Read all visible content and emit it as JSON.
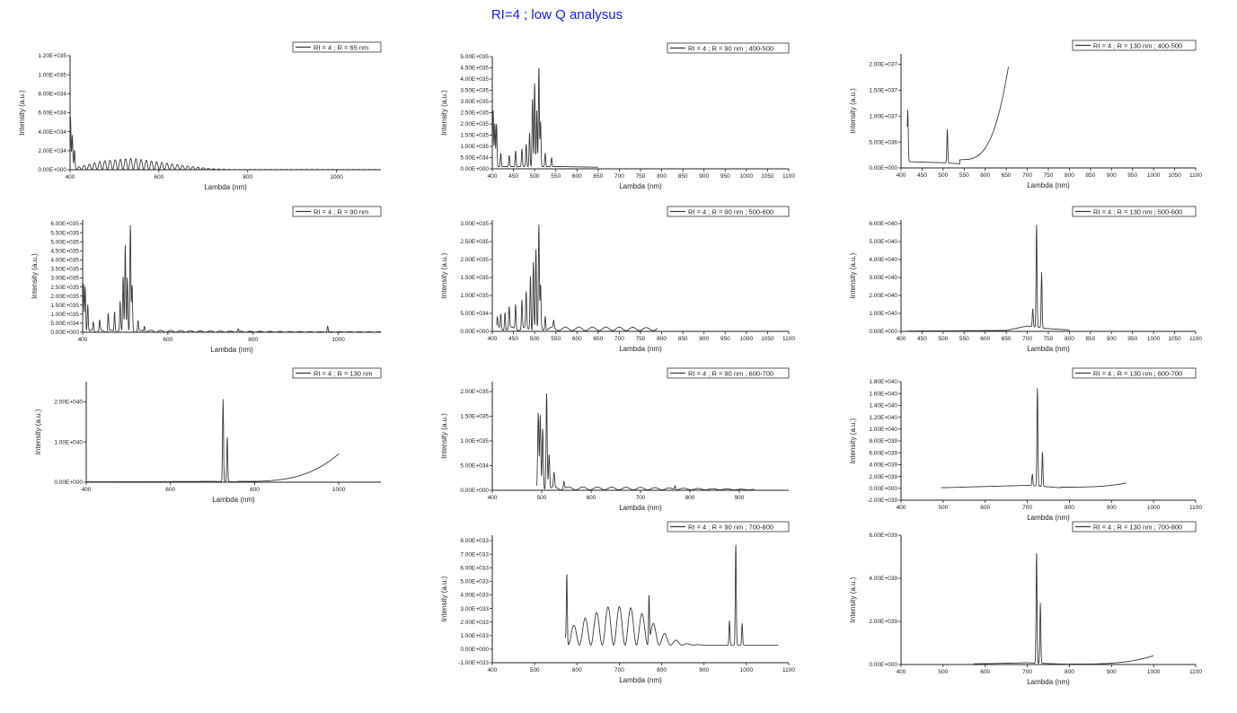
{
  "title": "RI=4 ; low Q analysus",
  "colors": {
    "line": "#3a3a3a",
    "title": "#1a1adc"
  },
  "chart_data": [
    {
      "id": "p11",
      "type": "line",
      "legend": "RI = 4 ; R = 65 nm",
      "xlabel": "Lambda (nm)",
      "ylabel": "Intensity (a.u.)",
      "xlim": [
        400,
        1100
      ],
      "xticks": [
        400,
        600,
        800,
        1000
      ],
      "ylim": [
        0,
        1.2e+35
      ],
      "yticks": [
        [
          0,
          "0.00E+000"
        ],
        [
          2e+34,
          "2.00E+034"
        ],
        [
          4e+34,
          "4.00E+034"
        ],
        [
          6e+34,
          "6.00E+034"
        ],
        [
          8e+34,
          "8.00E+034"
        ],
        [
          1e+35,
          "1.00E+035"
        ],
        [
          1.2e+35,
          "1.20E+035"
        ]
      ],
      "x_range": [
        400,
        1090
      ],
      "peaks": [
        [
          401,
          5.5e+34
        ],
        [
          405,
          3.5e+34
        ],
        [
          410,
          1.8e+34
        ]
      ],
      "envelope": [
        [
          420,
          3e+33
        ],
        [
          470,
          9e+33
        ],
        [
          540,
          1.2e+34
        ],
        [
          600,
          8e+33
        ],
        [
          660,
          4e+33
        ],
        [
          720,
          1e+33
        ],
        [
          760,
          2e+32
        ]
      ],
      "osc": 60,
      "floor": 1e+32
    },
    {
      "id": "p12",
      "type": "line",
      "legend": "RI = 4 ; R = 90 nm ; 400-500",
      "xlabel": "Lambda (nm)",
      "ylabel": "Intensity (a.u.)",
      "xlim": [
        400,
        1100
      ],
      "xticks": [
        400,
        450,
        500,
        550,
        600,
        650,
        700,
        750,
        800,
        850,
        900,
        950,
        1000,
        1050,
        1100
      ],
      "ylim": [
        0,
        5e+35
      ],
      "yticks": [
        [
          0,
          "0.00E+000"
        ],
        [
          5e+34,
          "5.00E+034"
        ],
        [
          1e+35,
          "1.00E+035"
        ],
        [
          1.5e+35,
          "1.50E+035"
        ],
        [
          2e+35,
          "2.00E+035"
        ],
        [
          2.5e+35,
          "2.50E+035"
        ],
        [
          3e+35,
          "3.00E+035"
        ],
        [
          3.5e+35,
          "3.50E+035"
        ],
        [
          4e+35,
          "4.00E+035"
        ],
        [
          4.5e+35,
          "4.50E+035"
        ],
        [
          5e+35,
          "5.00E+035"
        ]
      ],
      "x_range": [
        400,
        650
      ],
      "peaks": [
        [
          402,
          2.5e+35
        ],
        [
          406,
          1.9e+35
        ],
        [
          410,
          1.9e+35
        ],
        [
          420,
          6e+34
        ],
        [
          440,
          5e+34
        ],
        [
          455,
          7e+34
        ],
        [
          470,
          8e+34
        ],
        [
          480,
          1e+35
        ],
        [
          488,
          1.5e+35
        ],
        [
          495,
          3e+35
        ],
        [
          500,
          3.7e+35
        ],
        [
          505,
          2.5e+35
        ],
        [
          510,
          4.4e+35
        ],
        [
          514,
          2e+35
        ],
        [
          525,
          6e+34
        ],
        [
          540,
          4e+34
        ]
      ],
      "envelope": [
        [
          560,
          8e+33
        ],
        [
          650,
          5e+33
        ]
      ],
      "osc": 0,
      "floor": 2e+33
    },
    {
      "id": "p13",
      "type": "line",
      "legend": "RI = 4 ; R = 130 nm ; 400-500",
      "xlabel": "Lambda (nm)",
      "ylabel": "Intensity (a.u.)",
      "xlim": [
        400,
        1100
      ],
      "xticks": [
        400,
        450,
        500,
        550,
        600,
        650,
        700,
        750,
        800,
        850,
        900,
        950,
        1000,
        1050,
        1100
      ],
      "ylim": [
        0,
        2.2e+37
      ],
      "yticks": [
        [
          0,
          "0.00E+000"
        ],
        [
          5e+36,
          "5.00E+036"
        ],
        [
          1e+37,
          "1.00E+037"
        ],
        [
          1.5e+37,
          "1.50E+037"
        ],
        [
          2e+37,
          "2.00E+037"
        ]
      ],
      "x_range": [
        415,
        655
      ],
      "peaks": [
        [
          416,
          1e+37
        ],
        [
          510,
          6.5e+36
        ]
      ],
      "exp_rise": {
        "start": 540,
        "end": 655,
        "base": 8e+35,
        "top": 1.87e+37
      },
      "envelope": [
        [
          420,
          1.2e+36
        ],
        [
          500,
          1e+36
        ],
        [
          540,
          8e+35
        ]
      ],
      "osc": 0,
      "floor": 0
    },
    {
      "id": "p21",
      "type": "line",
      "legend": "RI = 4 ; R = 90 nm",
      "xlabel": "Lambda (nm)",
      "ylabel": "Intensity (a.u.)",
      "xlim": [
        400,
        1100
      ],
      "xticks": [
        400,
        600,
        800,
        1000
      ],
      "ylim": [
        0,
        6.2e+35
      ],
      "yticks": [
        [
          0,
          "0.00E+000"
        ],
        [
          5e+34,
          "5.00E+034"
        ],
        [
          1e+35,
          "1.00E+035"
        ],
        [
          1.5e+35,
          "1.50E+035"
        ],
        [
          2e+35,
          "2.00E+035"
        ],
        [
          2.5e+35,
          "2.50E+035"
        ],
        [
          3e+35,
          "3.00E+035"
        ],
        [
          3.5e+35,
          "3.50E+035"
        ],
        [
          4e+35,
          "4.00E+035"
        ],
        [
          4.5e+35,
          "4.50E+035"
        ],
        [
          5e+35,
          "5.00E+035"
        ],
        [
          5.5e+35,
          "5.50E+035"
        ],
        [
          6e+35,
          "6.00E+035"
        ]
      ],
      "x_range": [
        400,
        1100
      ],
      "peaks": [
        [
          402,
          2.6e+35
        ],
        [
          406,
          2.5e+35
        ],
        [
          412,
          1.5e+35
        ],
        [
          425,
          5e+34
        ],
        [
          440,
          6e+34
        ],
        [
          460,
          1e+35
        ],
        [
          475,
          1.1e+35
        ],
        [
          488,
          1.6e+35
        ],
        [
          495,
          3e+35
        ],
        [
          500,
          4.8e+35
        ],
        [
          505,
          3e+35
        ],
        [
          512,
          5.8e+35
        ],
        [
          516,
          2.5e+35
        ],
        [
          530,
          6e+34
        ],
        [
          545,
          3e+34
        ],
        [
          765,
          1.5e+34
        ],
        [
          975,
          3e+34
        ]
      ],
      "envelope": [
        [
          560,
          1e+34
        ],
        [
          700,
          6e+33
        ],
        [
          900,
          3e+33
        ],
        [
          1100,
          2e+33
        ]
      ],
      "osc": 30,
      "floor": 1e+33
    },
    {
      "id": "p22",
      "type": "line",
      "legend": "RI = 4 ; R = 90 nm ; 500-600",
      "xlabel": "Lambda (nm)",
      "ylabel": "Intensity (a.u.)",
      "xlim": [
        400,
        1100
      ],
      "xticks": [
        400,
        450,
        500,
        550,
        600,
        650,
        700,
        750,
        800,
        850,
        900,
        950,
        1000,
        1050,
        1100
      ],
      "ylim": [
        0,
        3.1e+35
      ],
      "yticks": [
        [
          0,
          "0.00E+000"
        ],
        [
          5e+34,
          "5.00E+034"
        ],
        [
          1e+35,
          "1.00E+035"
        ],
        [
          1.5e+35,
          "1.50E+035"
        ],
        [
          2e+35,
          "2.00E+035"
        ],
        [
          2.5e+35,
          "2.50E+035"
        ],
        [
          3e+35,
          "3.00E+035"
        ]
      ],
      "x_range": [
        410,
        790
      ],
      "peaks": [
        [
          412,
          3e+34
        ],
        [
          420,
          4e+34
        ],
        [
          430,
          5e+34
        ],
        [
          440,
          6e+34
        ],
        [
          455,
          7e+34
        ],
        [
          470,
          8e+34
        ],
        [
          480,
          1e+35
        ],
        [
          490,
          1.5e+35
        ],
        [
          497,
          1.9e+35
        ],
        [
          503,
          2.2e+35
        ],
        [
          510,
          2.85e+35
        ],
        [
          514,
          1.2e+35
        ],
        [
          525,
          4e+34
        ],
        [
          545,
          2e+34
        ]
      ],
      "envelope": [
        [
          560,
          1e+34
        ],
        [
          700,
          1e+34
        ],
        [
          790,
          8e+33
        ]
      ],
      "osc": 22,
      "floor": 2e+33
    },
    {
      "id": "p23",
      "type": "line",
      "legend": "RI = 4 ; R = 130 nm ; 500-600",
      "xlabel": "Lambda (nm)",
      "ylabel": "Intensity (a.u.)",
      "xlim": [
        400,
        1100
      ],
      "xticks": [
        400,
        450,
        500,
        550,
        600,
        650,
        700,
        750,
        800,
        850,
        900,
        950,
        1000,
        1050,
        1100
      ],
      "ylim": [
        0,
        6.2e+40
      ],
      "yticks": [
        [
          0,
          "0.00E+000"
        ],
        [
          1e+40,
          "1.00E+040"
        ],
        [
          2e+40,
          "2.00E+040"
        ],
        [
          3e+40,
          "3.00E+040"
        ],
        [
          4e+40,
          "4.00E+040"
        ],
        [
          5e+40,
          "5.00E+040"
        ],
        [
          6e+40,
          "6.00E+040"
        ]
      ],
      "x_range": [
        415,
        800
      ],
      "peaks": [
        [
          713,
          1e+40
        ],
        [
          722,
          5.7e+40
        ],
        [
          734,
          3.1e+40
        ]
      ],
      "envelope": [
        [
          420,
          2e+38
        ],
        [
          650,
          5e+38
        ],
        [
          700,
          3e+39
        ],
        [
          750,
          1.5e+39
        ],
        [
          800,
          8e+38
        ]
      ],
      "osc": 0,
      "floor": 0
    },
    {
      "id": "p31",
      "type": "line",
      "legend": "RI = 4 ; R = 130 nm",
      "xlabel": "Lambda (nm)",
      "ylabel": "Intensity (a.u.)",
      "xlim": [
        400,
        1100
      ],
      "xticks": [
        400,
        600,
        800,
        1000
      ],
      "ylim": [
        0,
        2.5e+40
      ],
      "yticks": [
        [
          0,
          "0.00E+000"
        ],
        [
          1e+40,
          "1.00E+040"
        ],
        [
          2e+40,
          "2.00E+040"
        ]
      ],
      "x_range": [
        400,
        1000
      ],
      "peaks": [
        [
          725,
          2.05e+40
        ],
        [
          735,
          1.1e+40
        ]
      ],
      "exp_rise": {
        "start": 760,
        "end": 1000,
        "base": 1e+38,
        "top": 7e+39
      },
      "envelope": [
        [
          400,
          1e+38
        ],
        [
          700,
          2e+38
        ],
        [
          760,
          1e+38
        ]
      ],
      "osc": 0,
      "floor": 0
    },
    {
      "id": "p32",
      "type": "line",
      "legend": "RI = 4 ; R = 90 nm ; 600-700",
      "xlabel": "Lambda (nm)",
      "ylabel": "Intensity (a.u.)",
      "xlim": [
        400,
        1000
      ],
      "xticks": [
        400,
        500,
        600,
        700,
        800,
        900
      ],
      "ylim": [
        0,
        2.2e+35
      ],
      "yticks": [
        [
          0,
          "0.00E+000"
        ],
        [
          5e+34,
          "5.00E+034"
        ],
        [
          1e+35,
          "1.00E+035"
        ],
        [
          1.5e+35,
          "1.50E+035"
        ],
        [
          2e+35,
          "2.00E+035"
        ]
      ],
      "x_range": [
        490,
        930
      ],
      "peaks": [
        [
          493,
          1.5e+35
        ],
        [
          497,
          1.45e+35
        ],
        [
          502,
          1.2e+35
        ],
        [
          510,
          1.95e+35
        ],
        [
          515,
          7e+34
        ],
        [
          525,
          3e+34
        ],
        [
          545,
          1.5e+34
        ],
        [
          770,
          8e+33
        ]
      ],
      "envelope": [
        [
          560,
          6e+33
        ],
        [
          700,
          5e+33
        ],
        [
          800,
          3e+33
        ],
        [
          930,
          1e+33
        ]
      ],
      "osc": 24,
      "floor": 1e+33
    },
    {
      "id": "p33",
      "type": "line",
      "legend": "RI = 4 ; R = 130 nm ; 600-700",
      "xlabel": "Lambda (nm)",
      "ylabel": "Intensity (a.u.)",
      "xlim": [
        400,
        1100
      ],
      "xticks": [
        400,
        500,
        600,
        700,
        800,
        900,
        1000,
        1100
      ],
      "ylim": [
        -2e+39,
        1.8e+40
      ],
      "yticks": [
        [
          -2e+39,
          "-2.00E+039"
        ],
        [
          0,
          "0.00E+000"
        ],
        [
          2e+39,
          "2.00E+039"
        ],
        [
          4e+39,
          "4.00E+039"
        ],
        [
          6e+39,
          "6.00E+039"
        ],
        [
          8e+39,
          "8.00E+039"
        ],
        [
          1e+40,
          "1.00E+040"
        ],
        [
          1.2e+40,
          "1.20E+040"
        ],
        [
          1.4e+40,
          "1.40E+040"
        ],
        [
          1.6e+40,
          "1.60E+040"
        ],
        [
          1.8e+40,
          "1.80E+040"
        ]
      ],
      "x_range": [
        495,
        935
      ],
      "peaks": [
        [
          712,
          2e+39
        ],
        [
          724,
          1.65e+40
        ],
        [
          736,
          5.8e+39
        ]
      ],
      "exp_rise": {
        "start": 780,
        "end": 935,
        "base": 1e+38,
        "top": 8e+38
      },
      "envelope": [
        [
          495,
          1e+38
        ],
        [
          700,
          5e+38
        ],
        [
          780,
          1e+38
        ]
      ],
      "osc": 0,
      "floor": 0
    },
    {
      "id": "p42",
      "type": "line",
      "legend": "RI = 4 ; R = 90 nm ; 700-800",
      "xlabel": "Lambda (nm)",
      "ylabel": "Intensity (a.u.)",
      "xlim": [
        400,
        1100
      ],
      "xticks": [
        400,
        500,
        600,
        700,
        800,
        900,
        1000,
        1100
      ],
      "ylim": [
        -1e+33,
        8.4e+33
      ],
      "yticks": [
        [
          -1e+33,
          "-1.00E+033"
        ],
        [
          0,
          "0.00E+000"
        ],
        [
          1e+33,
          "1.00E+033"
        ],
        [
          2e+33,
          "2.00E+033"
        ],
        [
          3e+33,
          "3.00E+033"
        ],
        [
          4e+33,
          "4.00E+033"
        ],
        [
          5e+33,
          "5.00E+033"
        ],
        [
          6e+33,
          "6.00E+033"
        ],
        [
          7e+33,
          "7.00E+033"
        ],
        [
          8e+33,
          "8.00E+033"
        ]
      ],
      "x_range": [
        572,
        1075
      ],
      "peaks": [
        [
          576,
          5.1e+33
        ],
        [
          770,
          3.5e+33
        ],
        [
          960,
          1.8e+33
        ],
        [
          975,
          7.4e+33
        ],
        [
          990,
          1.6e+33
        ]
      ],
      "envelope": [
        [
          580,
          1.2e+33
        ],
        [
          620,
          2e+33
        ],
        [
          680,
          2.9e+33
        ],
        [
          740,
          2.7e+33
        ],
        [
          780,
          1.6e+33
        ],
        [
          820,
          5e+32
        ],
        [
          860,
          1e+32
        ],
        [
          900,
          0
        ],
        [
          1075,
          0
        ]
      ],
      "osc": 26,
      "floor": 3e+32
    },
    {
      "id": "p43",
      "type": "line",
      "legend": "RI = 4 ; R = 130 nm ; 700-800",
      "xlabel": "Lambda (nm)",
      "ylabel": "Intensity (a.u.)",
      "xlim": [
        400,
        1100
      ],
      "xticks": [
        400,
        500,
        600,
        700,
        800,
        900,
        1000,
        1100
      ],
      "ylim": [
        0,
        6e+39
      ],
      "yticks": [
        [
          0,
          "0.00E+000"
        ],
        [
          2e+39,
          "2.00E+039"
        ],
        [
          4e+39,
          "4.00E+039"
        ],
        [
          6e+39,
          "6.00E+039"
        ]
      ],
      "x_range": [
        572,
        1000
      ],
      "peaks": [
        [
          722,
          5.1e+39
        ],
        [
          731,
          2.8e+39
        ]
      ],
      "exp_rise": {
        "start": 800,
        "end": 1000,
        "base": 1e+37,
        "top": 4e+38
      },
      "envelope": [
        [
          572,
          3e+37
        ],
        [
          700,
          8e+37
        ],
        [
          800,
          1e+37
        ]
      ],
      "osc": 0,
      "floor": 0
    }
  ]
}
